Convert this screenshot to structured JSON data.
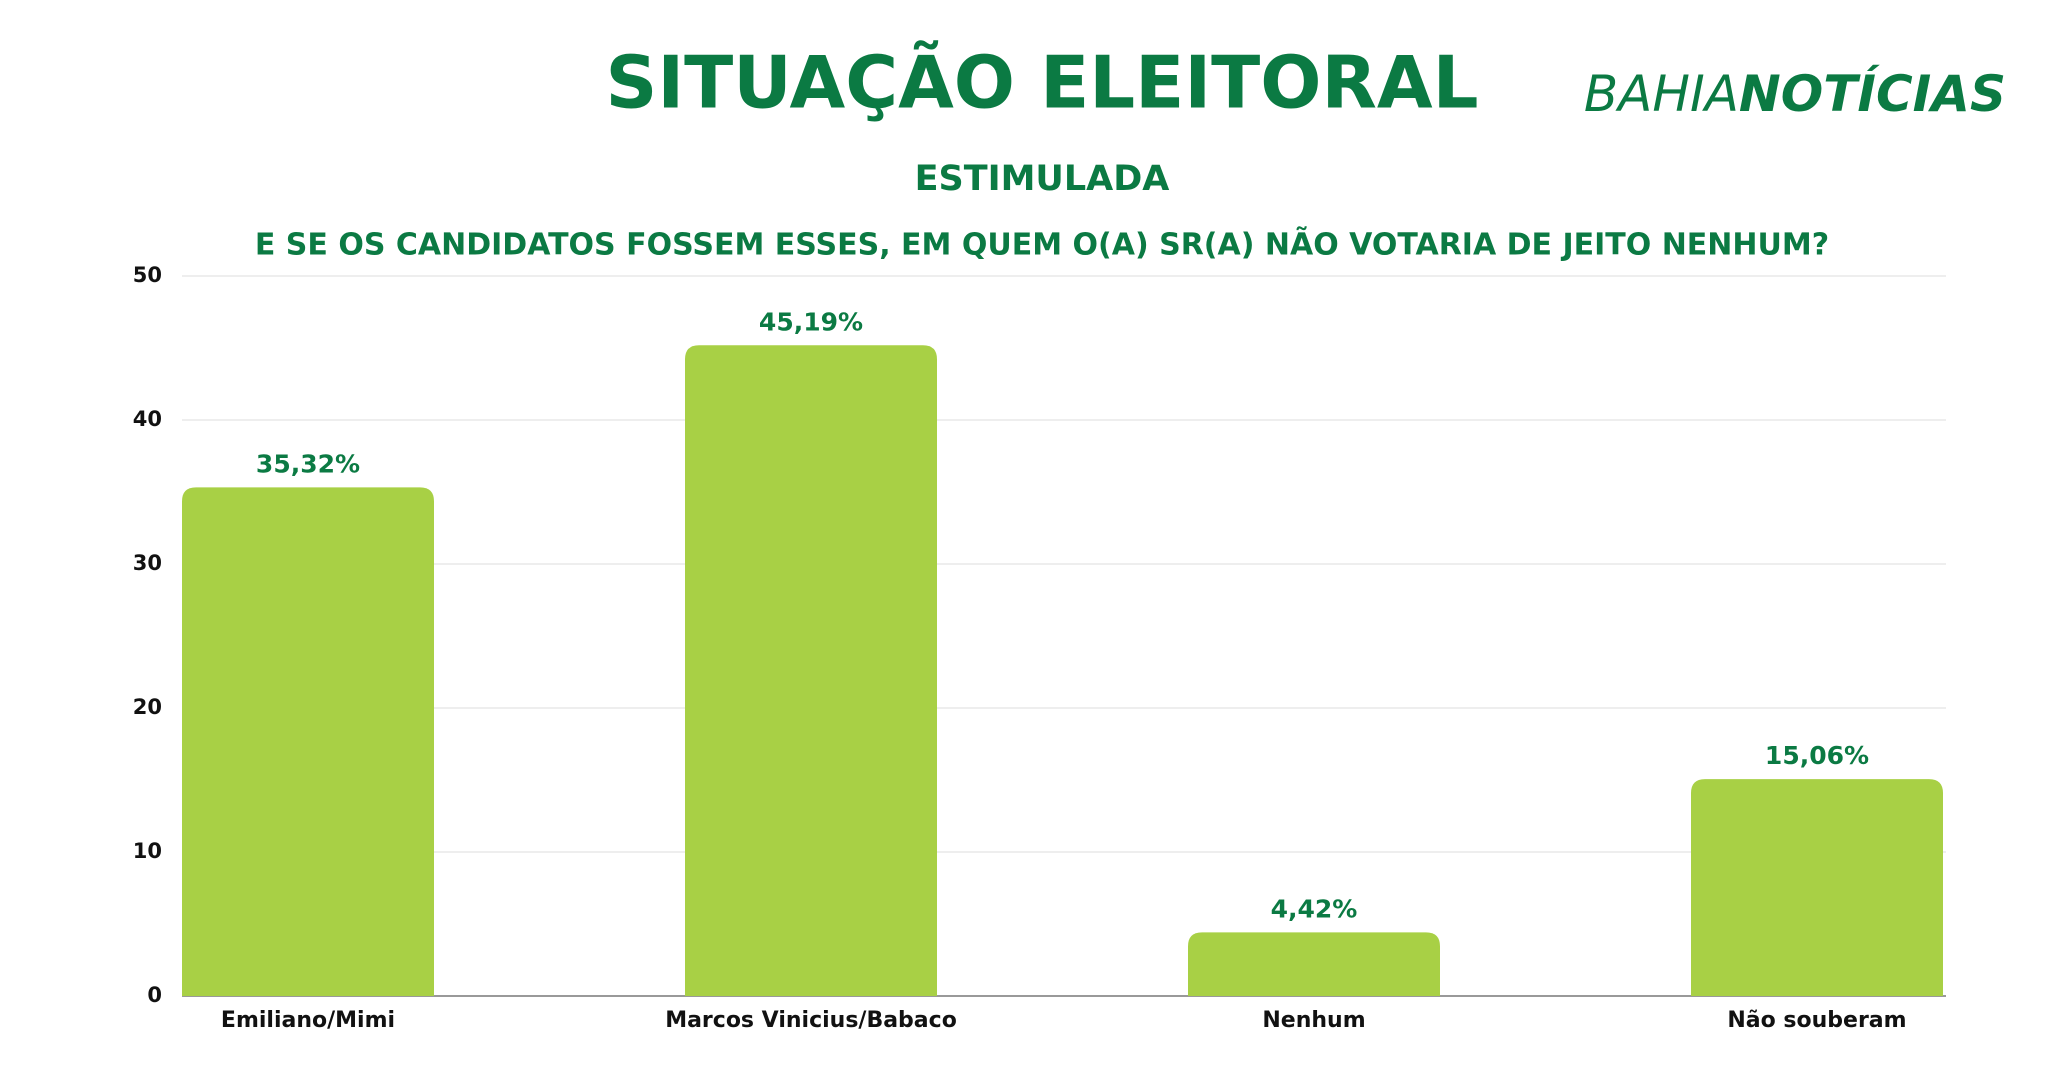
{
  "brand": {
    "part1": "BAHIA",
    "part2": "NOTÍCIAS"
  },
  "chart_data": {
    "type": "bar",
    "title": "SITUAÇÃO ELEITORAL",
    "subtitle": "ESTIMULADA",
    "question": "E SE OS CANDIDATOS FOSSEM ESSES, EM QUEM O(A) SR(A) NÃO VOTARIA DE JEITO NENHUM?",
    "categories": [
      "Emiliano/Mimi",
      "Marcos Vinicius/Babaco",
      "Nenhum",
      "Não souberam"
    ],
    "values": [
      35.32,
      45.19,
      4.42,
      15.06
    ],
    "value_labels": [
      "35,32%",
      "45,19%",
      "4,42%",
      "15,06%"
    ],
    "color": "#a8d045",
    "ylim": [
      0,
      50
    ],
    "yticks": [
      0,
      10,
      20,
      30,
      40,
      50
    ],
    "grid": true
  }
}
